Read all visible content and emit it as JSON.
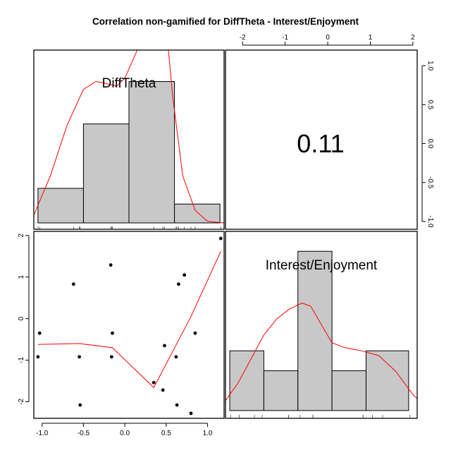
{
  "chart_data": {
    "type": "scatter",
    "title": "Correlation non-gamified for DiffTheta - Interest/Enjoyment",
    "variables": [
      "DiffTheta",
      "Interest/Enjoyment"
    ],
    "correlation": "0.11",
    "diff_theta_axis": {
      "lim": [
        -1.1,
        1.2
      ],
      "ticks": [
        -1.0,
        -0.5,
        0.0,
        0.5,
        1.0
      ],
      "tick_labels": [
        "-1.0",
        "-0.5",
        "0.0",
        "0.5",
        "1.0"
      ]
    },
    "interest_axis_top": {
      "lim": [
        -2.4,
        2.1
      ],
      "ticks": [
        -2,
        -1,
        0,
        1,
        2
      ],
      "tick_labels": [
        "-2",
        "-1",
        "0",
        "1",
        "2"
      ]
    },
    "interest_axis_left": {
      "lim": [
        -2.4,
        2.1
      ],
      "ticks": [
        -2,
        -1,
        0,
        1,
        2
      ],
      "tick_labels": [
        "-2",
        "-1",
        "0",
        "1",
        "2"
      ]
    },
    "diff_theta_axis_right": {
      "lim": [
        -1.1,
        1.2
      ],
      "ticks": [
        -1.0,
        -0.5,
        0.0,
        0.5,
        1.0
      ],
      "tick_labels": [
        "-1.0",
        "-0.5",
        "0.0",
        "0.5",
        "1.0"
      ]
    },
    "scatter": {
      "x": [
        -1.05,
        -1.03,
        -0.62,
        -0.55,
        -0.54,
        -0.17,
        -0.16,
        -0.15,
        0.35,
        0.46,
        0.48,
        0.62,
        0.63,
        0.65,
        0.72,
        0.8,
        0.85,
        1.16
      ],
      "y": [
        -0.92,
        -0.35,
        0.83,
        -0.92,
        -2.08,
        1.29,
        -0.92,
        -0.35,
        -1.54,
        -1.72,
        -0.65,
        -0.92,
        -2.08,
        0.83,
        1.05,
        -2.28,
        -0.35,
        1.93
      ]
    },
    "loess_scatter": {
      "x": [
        -1.05,
        -0.55,
        -0.15,
        0.35,
        0.55,
        0.8,
        1.16
      ],
      "y": [
        -0.62,
        -0.6,
        -0.7,
        -1.66,
        -0.9,
        0.05,
        1.62
      ]
    },
    "hist_diff_theta": {
      "breaks": [
        -1.05,
        -0.5,
        0.05,
        0.6,
        1.15
      ],
      "densities": [
        0.22,
        0.63,
        0.9,
        0.12
      ],
      "ylim": [
        0,
        1.1
      ],
      "rug": [
        -1.05,
        -1.03,
        -0.62,
        -0.55,
        -0.54,
        -0.17,
        -0.16,
        -0.15,
        0.35,
        0.46,
        0.48,
        0.62,
        0.63,
        0.65,
        0.72,
        0.8,
        0.85,
        1.16
      ]
    },
    "hist_interest": {
      "breaks": [
        -2.3,
        -1.5,
        -0.7,
        0.1,
        0.9,
        1.9
      ],
      "densities": [
        0.15,
        0.1,
        0.4,
        0.1,
        0.15
      ],
      "ylim": [
        0,
        0.45
      ],
      "rug": [
        -2.28,
        -2.08,
        -2.08,
        -1.72,
        -1.54,
        -0.92,
        -0.92,
        -0.92,
        -0.92,
        -0.65,
        -0.35,
        -0.35,
        -0.35,
        0.83,
        0.83,
        1.05,
        1.29,
        1.93
      ]
    },
    "density_diff_theta": {
      "x": [
        -1.1,
        -0.9,
        -0.7,
        -0.5,
        -0.35,
        -0.25,
        -0.1,
        0.0,
        0.15,
        0.3,
        0.42,
        0.5,
        0.58,
        0.7,
        0.85,
        1.0,
        1.2
      ],
      "y": [
        0.05,
        0.3,
        0.62,
        0.85,
        0.9,
        0.89,
        0.87,
        0.92,
        1.1,
        1.38,
        1.44,
        1.25,
        0.8,
        0.3,
        0.08,
        0.01,
        0.0
      ]
    },
    "density_interest": {
      "x": [
        -2.4,
        -2.1,
        -1.8,
        -1.5,
        -1.2,
        -0.9,
        -0.6,
        -0.4,
        -0.2,
        0.1,
        0.4,
        0.8,
        1.2,
        1.6,
        2.0,
        2.1
      ],
      "y": [
        0.025,
        0.07,
        0.13,
        0.19,
        0.23,
        0.255,
        0.27,
        0.262,
        0.225,
        0.17,
        0.158,
        0.15,
        0.138,
        0.098,
        0.04,
        0.03
      ]
    }
  }
}
